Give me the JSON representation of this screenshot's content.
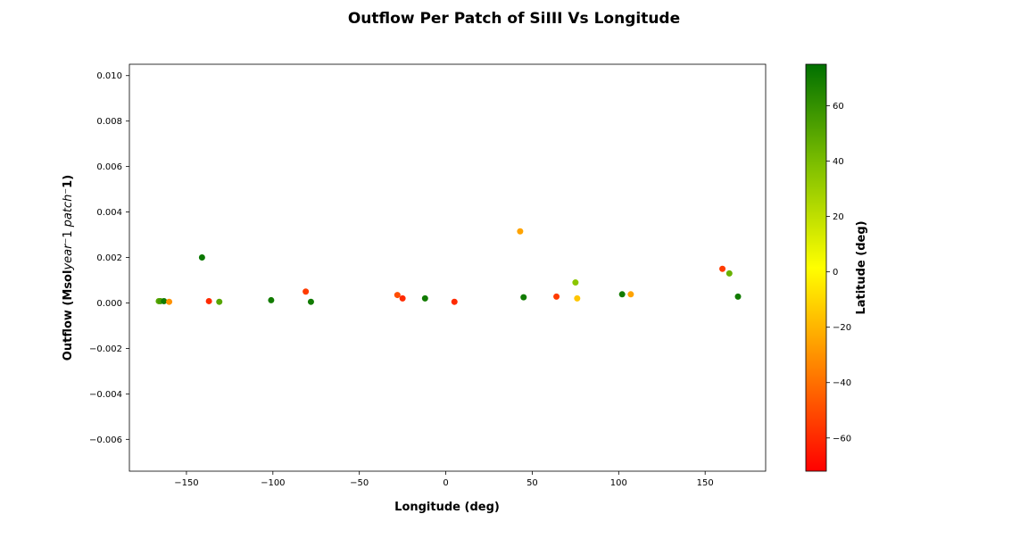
{
  "chart_data": {
    "type": "scatter",
    "title": "Outflow Per Patch of SiIII Vs Longitude",
    "xlabel": "Longitude (deg)",
    "ylabel": "Outflow (Msol$year^-1$ $patch^-1$)",
    "ylabel_parts": {
      "a": "Outflow (Msol",
      "b": "year",
      "c": "1",
      "d": "patch",
      "e": "1)"
    },
    "colorbar_label": "Latitude (deg)",
    "xlim": [
      -183,
      185
    ],
    "ylim": [
      -0.0074,
      0.0105
    ],
    "colorbar_range": [
      -72,
      75
    ],
    "x_ticks": [
      {
        "v": -150,
        "label": "−150"
      },
      {
        "v": -100,
        "label": "−100"
      },
      {
        "v": -50,
        "label": "−50"
      },
      {
        "v": 0,
        "label": "0"
      },
      {
        "v": 50,
        "label": "50"
      },
      {
        "v": 100,
        "label": "100"
      },
      {
        "v": 150,
        "label": "150"
      }
    ],
    "y_ticks": [
      {
        "v": -0.006,
        "label": "−0.006"
      },
      {
        "v": -0.004,
        "label": "−0.004"
      },
      {
        "v": -0.002,
        "label": "−0.002"
      },
      {
        "v": 0.0,
        "label": "0.000"
      },
      {
        "v": 0.002,
        "label": "0.002"
      },
      {
        "v": 0.004,
        "label": "0.004"
      },
      {
        "v": 0.006,
        "label": "0.006"
      },
      {
        "v": 0.008,
        "label": "0.008"
      },
      {
        "v": 0.01,
        "label": "0.010"
      }
    ],
    "colorbar_ticks": [
      {
        "v": -60,
        "label": "−60"
      },
      {
        "v": -40,
        "label": "−40"
      },
      {
        "v": -20,
        "label": "−20"
      },
      {
        "v": 0,
        "label": "0"
      },
      {
        "v": 20,
        "label": "20"
      },
      {
        "v": 40,
        "label": "40"
      },
      {
        "v": 60,
        "label": "60"
      }
    ],
    "colormap": [
      "#ff0000",
      "#ff8000",
      "#ffff00",
      "#80c000",
      "#007000"
    ],
    "grid": false,
    "points": [
      {
        "x": -166,
        "y": 8e-05,
        "lat": 50
      },
      {
        "x": -165,
        "y": 8e-05,
        "lat": 55
      },
      {
        "x": -163,
        "y": 8e-05,
        "lat": 70
      },
      {
        "x": -160,
        "y": 5e-05,
        "lat": -30
      },
      {
        "x": -141,
        "y": 0.002,
        "lat": 72
      },
      {
        "x": -137,
        "y": 8e-05,
        "lat": -60
      },
      {
        "x": -131,
        "y": 5e-05,
        "lat": 50
      },
      {
        "x": -101,
        "y": 0.00012,
        "lat": 70
      },
      {
        "x": -81,
        "y": 0.0005,
        "lat": -55
      },
      {
        "x": -78,
        "y": 5e-05,
        "lat": 70
      },
      {
        "x": -28,
        "y": 0.00035,
        "lat": -50
      },
      {
        "x": -25,
        "y": 0.0002,
        "lat": -60
      },
      {
        "x": -12,
        "y": 0.0002,
        "lat": 70
      },
      {
        "x": 5,
        "y": 5e-05,
        "lat": -60
      },
      {
        "x": 43,
        "y": 0.00315,
        "lat": -25
      },
      {
        "x": 45,
        "y": 0.00025,
        "lat": 70
      },
      {
        "x": 64,
        "y": 0.00028,
        "lat": -55
      },
      {
        "x": 75,
        "y": 0.0009,
        "lat": 35
      },
      {
        "x": 76,
        "y": 0.0002,
        "lat": -15
      },
      {
        "x": 102,
        "y": 0.00038,
        "lat": 70
      },
      {
        "x": 107,
        "y": 0.00038,
        "lat": -25
      },
      {
        "x": 160,
        "y": 0.0015,
        "lat": -55
      },
      {
        "x": 164,
        "y": 0.0013,
        "lat": 45
      },
      {
        "x": 169,
        "y": 0.00028,
        "lat": 70
      }
    ]
  }
}
